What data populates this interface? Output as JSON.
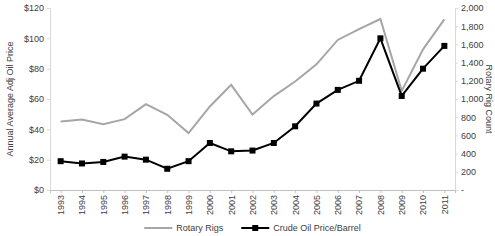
{
  "chart_data": {
    "type": "line",
    "categories": [
      "1993",
      "1994",
      "1995",
      "1996",
      "1997",
      "1998",
      "1999",
      "2000",
      "2001",
      "2002",
      "2003",
      "2004",
      "2005",
      "2006",
      "2007",
      "2008",
      "2009",
      "2010",
      "2011"
    ],
    "y_label": "Annual Average Adj Oil Price",
    "y2_label": "Rotary Rig Count",
    "ylim": [
      0,
      120
    ],
    "yticks": [
      {
        "value": 0,
        "label": "$0"
      },
      {
        "value": 20,
        "label": "$20"
      },
      {
        "value": 40,
        "label": "$40"
      },
      {
        "value": 60,
        "label": "$60"
      },
      {
        "value": 80,
        "label": "$80"
      },
      {
        "value": 100,
        "label": "$100"
      },
      {
        "value": 120,
        "label": "$120"
      }
    ],
    "y2lim": [
      0,
      2000
    ],
    "y2ticks": [
      {
        "value": 0,
        "label": "-"
      },
      200,
      400,
      600,
      800,
      {
        "value": 1000,
        "label": "1,000"
      },
      {
        "value": 1200,
        "label": "1,200"
      },
      {
        "value": 1400,
        "label": "1,400"
      },
      {
        "value": 1600,
        "label": "1,600"
      },
      {
        "value": 1800,
        "label": "1,800"
      },
      {
        "value": 2000,
        "label": "2,000"
      }
    ],
    "grid": false,
    "legend": "bottom",
    "series": [
      {
        "name": "Rotary Rigs",
        "color": "#a6a6a6",
        "axis": "y2",
        "marker": "none",
        "values": [
          754,
          775,
          723,
          779,
          943,
          827,
          625,
          918,
          1156,
          830,
          1032,
          1192,
          1381,
          1649,
          1768,
          1879,
          1089,
          1546,
          1875
        ]
      },
      {
        "name": "Crude Oil Price/Barrel",
        "color": "#000000",
        "axis": "y",
        "marker": "square",
        "values": [
          19,
          17.5,
          18.5,
          22,
          20,
          14,
          19,
          31,
          25.5,
          26,
          31,
          42,
          57,
          66,
          72,
          100,
          62,
          80,
          95
        ]
      }
    ]
  }
}
